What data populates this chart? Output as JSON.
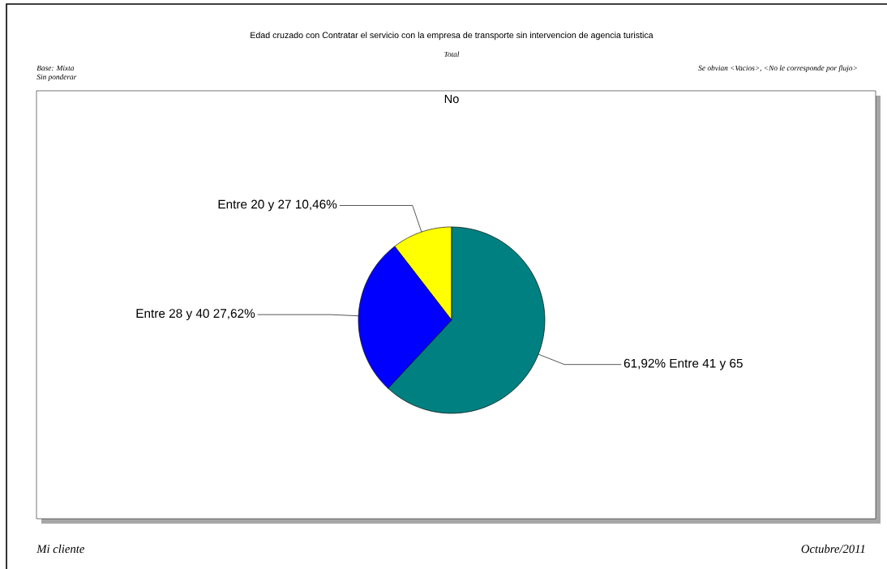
{
  "chart_data": {
    "type": "pie",
    "title": "Edad cruzado con Contratar el servicio con la empresa de transporte sin intervencion de agencia turistica",
    "categories": [
      "Entre 20 y 27",
      "Entre 28 y 40",
      "Entre 41 y 65"
    ],
    "values": [
      10.46,
      27.62,
      61.92
    ],
    "value_labels": [
      "10,46%",
      "27,62%",
      "61,92%"
    ],
    "colors": [
      "#ffff00",
      "#0000ff",
      "#008080"
    ],
    "annotations": [
      "Total",
      "Base: Mixta",
      "Sin ponderar",
      "Se obvian <Vacios>, <No le corresponde por flujo>",
      "No",
      "Mi cliente",
      "Octubre/2011"
    ]
  }
}
